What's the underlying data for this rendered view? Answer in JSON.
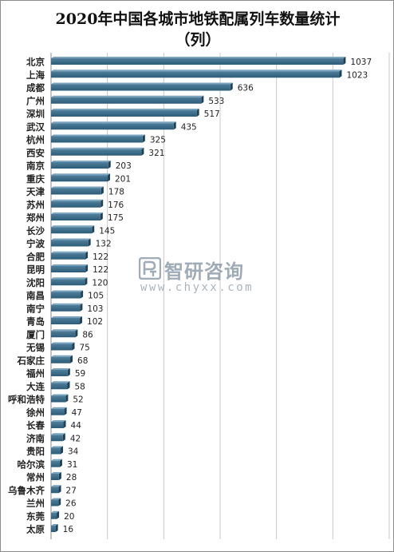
{
  "chart_data": {
    "type": "bar",
    "orientation": "horizontal",
    "title": "2020年中国各城市地铁配属列车数量统计",
    "subtitle": "（列）",
    "categories": [
      "北京",
      "上海",
      "成都",
      "广州",
      "深圳",
      "武汉",
      "杭州",
      "西安",
      "南京",
      "重庆",
      "天津",
      "苏州",
      "郑州",
      "长沙",
      "宁波",
      "合肥",
      "昆明",
      "沈阳",
      "南昌",
      "南宁",
      "青岛",
      "厦门",
      "无锡",
      "石家庄",
      "福州",
      "大连",
      "呼和浩特",
      "徐州",
      "长春",
      "济南",
      "贵阳",
      "哈尔滨",
      "常州",
      "乌鲁木齐",
      "兰州",
      "东莞",
      "太原"
    ],
    "values": [
      1037,
      1023,
      636,
      533,
      517,
      435,
      325,
      321,
      203,
      201,
      178,
      176,
      175,
      145,
      132,
      122,
      122,
      120,
      105,
      103,
      102,
      86,
      75,
      68,
      59,
      58,
      52,
      47,
      44,
      42,
      34,
      31,
      28,
      27,
      26,
      20,
      16
    ],
    "xlim": [
      0,
      1200
    ],
    "grid": true,
    "legend": false
  },
  "watermark": {
    "name": "智研咨询",
    "url": "www.chyxx.com"
  },
  "colors": {
    "bar_top": "#4f7f9c",
    "bar_bottom": "#2d5c78",
    "bar_side": "#1e4157",
    "grid": "#c8c8c8",
    "axis": "#8c8c8c"
  }
}
